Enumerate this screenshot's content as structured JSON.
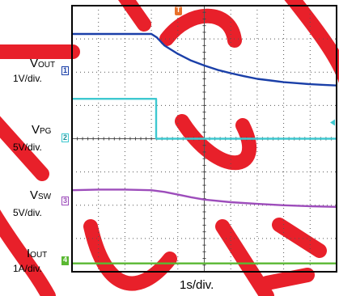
{
  "chart_data": {
    "type": "line",
    "title": "",
    "time_scale": "1s/div.",
    "grid": true,
    "divisions": {
      "x": 10,
      "y": 8
    },
    "trigger_marker": "T",
    "channels": [
      {
        "channel": "1",
        "name_main": "V",
        "name_sub": "OUT",
        "scale": "1V/div.",
        "color": "#1a3fa8",
        "x_div": [
          0,
          1,
          2,
          3,
          3.2,
          3.5,
          4,
          4.5,
          5,
          5.5,
          6,
          6.5,
          7,
          7.5,
          8,
          8.5,
          9,
          9.5,
          10
        ],
        "y_div": [
          7.15,
          7.15,
          7.15,
          7.15,
          7.05,
          6.8,
          6.55,
          6.35,
          6.2,
          6.07,
          5.97,
          5.88,
          5.8,
          5.75,
          5.7,
          5.67,
          5.64,
          5.62,
          5.6
        ]
      },
      {
        "channel": "2",
        "name_main": "V",
        "name_sub": "PG",
        "scale": "5V/div.",
        "color": "#3ec8d0",
        "x_div": [
          0,
          3.18,
          3.18,
          10
        ],
        "y_div": [
          5.2,
          5.2,
          4.0,
          4.0
        ]
      },
      {
        "channel": "3",
        "name_main": "V",
        "name_sub": "SW",
        "scale": "5V/div.",
        "color": "#9d4dbb",
        "x_div": [
          0,
          1,
          2,
          3,
          3.5,
          4,
          4.5,
          5,
          6,
          7,
          8,
          9,
          10
        ],
        "y_div": [
          2.45,
          2.47,
          2.47,
          2.45,
          2.4,
          2.32,
          2.24,
          2.17,
          2.09,
          2.04,
          2.0,
          1.97,
          1.95
        ]
      },
      {
        "channel": "4",
        "name_main": "I",
        "name_sub": "OUT",
        "scale": "1A/div.",
        "color": "#5ab832",
        "x_div": [
          0,
          10
        ],
        "y_div": [
          0.25,
          0.25
        ]
      }
    ]
  }
}
